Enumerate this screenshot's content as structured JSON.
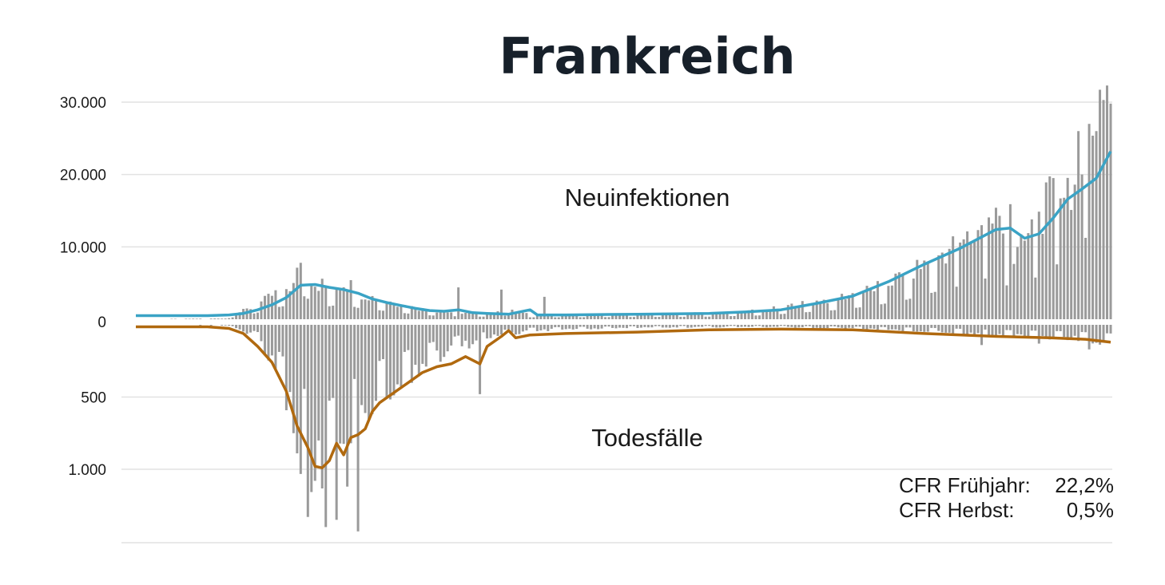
{
  "chart_data": {
    "type": "bar",
    "title": "Frankreich",
    "colors": {
      "bars": "#9a9a9a",
      "cases_line": "#3aa3c5",
      "deaths_line": "#b0690f",
      "grid": "#e2e2e2",
      "title": "#17202a"
    },
    "grid": true,
    "upper_axis": {
      "ticks": [
        {
          "value": 0,
          "label": "0"
        },
        {
          "value": 10000,
          "label": "10.000"
        },
        {
          "value": 20000,
          "label": "20.000"
        },
        {
          "value": 30000,
          "label": "30.000"
        }
      ]
    },
    "lower_axis": {
      "ticks": [
        {
          "value": 500,
          "label": "500"
        },
        {
          "value": 1000,
          "label": "1.000"
        }
      ]
    },
    "area_labels": {
      "upper": "Neuinfektionen",
      "lower": "Todesfälle"
    },
    "cfr": [
      {
        "label": "CFR Frühjahr:",
        "value": "22,2%"
      },
      {
        "label": "CFR Herbst:",
        "value": "0,5%"
      }
    ],
    "day_count": 273,
    "cases_daily_keypoints": [
      [
        0,
        0
      ],
      [
        25,
        100
      ],
      [
        28,
        800
      ],
      [
        32,
        1500
      ],
      [
        36,
        2600
      ],
      [
        40,
        3800
      ],
      [
        44,
        4500
      ],
      [
        46,
        7800
      ],
      [
        50,
        4800
      ],
      [
        54,
        4000
      ],
      [
        58,
        4700
      ],
      [
        62,
        3500
      ],
      [
        66,
        3000
      ],
      [
        70,
        2500
      ],
      [
        74,
        2000
      ],
      [
        78,
        1500
      ],
      [
        82,
        1200
      ],
      [
        86,
        1000
      ],
      [
        90,
        900
      ],
      [
        94,
        800
      ],
      [
        100,
        800
      ],
      [
        104,
        1200
      ],
      [
        110,
        600
      ],
      [
        120,
        600
      ],
      [
        140,
        700
      ],
      [
        160,
        800
      ],
      [
        175,
        1200
      ],
      [
        185,
        2000
      ],
      [
        195,
        2800
      ],
      [
        205,
        4000
      ],
      [
        215,
        6000
      ],
      [
        225,
        9000
      ],
      [
        235,
        11500
      ],
      [
        240,
        14000
      ],
      [
        245,
        8000
      ],
      [
        250,
        12000
      ],
      [
        255,
        16000
      ],
      [
        262,
        19000
      ],
      [
        266,
        27000
      ],
      [
        270,
        30000
      ],
      [
        272,
        29500
      ]
    ],
    "cases_daily_spikes": [
      [
        46,
        7800
      ],
      [
        52,
        5600
      ],
      [
        60,
        5400
      ],
      [
        90,
        4400
      ],
      [
        102,
        4100
      ],
      [
        114,
        3100
      ],
      [
        230,
        10600
      ],
      [
        236,
        13000
      ],
      [
        244,
        15900
      ],
      [
        250,
        13800
      ],
      [
        258,
        16700
      ],
      [
        262,
        18600
      ],
      [
        264,
        20000
      ],
      [
        266,
        27000
      ],
      [
        268,
        26000
      ],
      [
        270,
        30300
      ],
      [
        271,
        32300
      ],
      [
        272,
        29800
      ]
    ],
    "cases_7day_avg": [
      [
        0,
        500
      ],
      [
        10,
        500
      ],
      [
        20,
        500
      ],
      [
        26,
        600
      ],
      [
        30,
        800
      ],
      [
        34,
        1300
      ],
      [
        38,
        2000
      ],
      [
        42,
        3000
      ],
      [
        46,
        4700
      ],
      [
        50,
        4800
      ],
      [
        54,
        4400
      ],
      [
        58,
        4100
      ],
      [
        62,
        3600
      ],
      [
        66,
        2800
      ],
      [
        70,
        2300
      ],
      [
        74,
        1900
      ],
      [
        78,
        1500
      ],
      [
        82,
        1200
      ],
      [
        86,
        1100
      ],
      [
        90,
        1300
      ],
      [
        94,
        900
      ],
      [
        98,
        800
      ],
      [
        104,
        700
      ],
      [
        110,
        1300
      ],
      [
        112,
        600
      ],
      [
        120,
        600
      ],
      [
        140,
        700
      ],
      [
        160,
        800
      ],
      [
        170,
        1000
      ],
      [
        180,
        1300
      ],
      [
        190,
        2200
      ],
      [
        200,
        3200
      ],
      [
        210,
        5200
      ],
      [
        220,
        7600
      ],
      [
        230,
        9800
      ],
      [
        240,
        12400
      ],
      [
        244,
        12600
      ],
      [
        248,
        11200
      ],
      [
        252,
        11800
      ],
      [
        256,
        14000
      ],
      [
        260,
        16600
      ],
      [
        264,
        18000
      ],
      [
        268,
        19500
      ],
      [
        272,
        23200
      ]
    ],
    "deaths_daily_keypoints": [
      [
        0,
        0
      ],
      [
        25,
        5
      ],
      [
        30,
        40
      ],
      [
        34,
        100
      ],
      [
        38,
        250
      ],
      [
        42,
        500
      ],
      [
        46,
        850
      ],
      [
        50,
        1000
      ],
      [
        54,
        1050
      ],
      [
        58,
        900
      ],
      [
        62,
        700
      ],
      [
        66,
        550
      ],
      [
        70,
        450
      ],
      [
        74,
        400
      ],
      [
        78,
        300
      ],
      [
        82,
        250
      ],
      [
        86,
        200
      ],
      [
        90,
        150
      ],
      [
        95,
        120
      ],
      [
        100,
        80
      ],
      [
        110,
        40
      ],
      [
        120,
        30
      ],
      [
        140,
        20
      ],
      [
        160,
        15
      ],
      [
        180,
        15
      ],
      [
        200,
        25
      ],
      [
        220,
        40
      ],
      [
        240,
        70
      ],
      [
        260,
        90
      ],
      [
        272,
        120
      ]
    ],
    "deaths_daily_spikes": [
      [
        48,
        1330
      ],
      [
        50,
        1080
      ],
      [
        53,
        1400
      ],
      [
        56,
        1350
      ],
      [
        59,
        1120
      ],
      [
        62,
        1430
      ],
      [
        96,
        480
      ],
      [
        236,
        140
      ],
      [
        252,
        130
      ],
      [
        266,
        170
      ]
    ],
    "deaths_7day_avg": [
      [
        0,
        14
      ],
      [
        10,
        14
      ],
      [
        20,
        14
      ],
      [
        26,
        25
      ],
      [
        30,
        60
      ],
      [
        34,
        150
      ],
      [
        38,
        260
      ],
      [
        42,
        460
      ],
      [
        45,
        700
      ],
      [
        48,
        850
      ],
      [
        50,
        980
      ],
      [
        52,
        990
      ],
      [
        54,
        940
      ],
      [
        56,
        820
      ],
      [
        58,
        900
      ],
      [
        60,
        780
      ],
      [
        62,
        760
      ],
      [
        64,
        720
      ],
      [
        66,
        600
      ],
      [
        68,
        540
      ],
      [
        72,
        470
      ],
      [
        76,
        400
      ],
      [
        80,
        330
      ],
      [
        84,
        290
      ],
      [
        88,
        270
      ],
      [
        92,
        220
      ],
      [
        96,
        270
      ],
      [
        98,
        150
      ],
      [
        102,
        80
      ],
      [
        104,
        40
      ],
      [
        106,
        90
      ],
      [
        110,
        70
      ],
      [
        120,
        60
      ],
      [
        140,
        50
      ],
      [
        160,
        35
      ],
      [
        180,
        30
      ],
      [
        200,
        35
      ],
      [
        220,
        60
      ],
      [
        240,
        80
      ],
      [
        255,
        90
      ],
      [
        265,
        100
      ],
      [
        272,
        120
      ]
    ]
  }
}
